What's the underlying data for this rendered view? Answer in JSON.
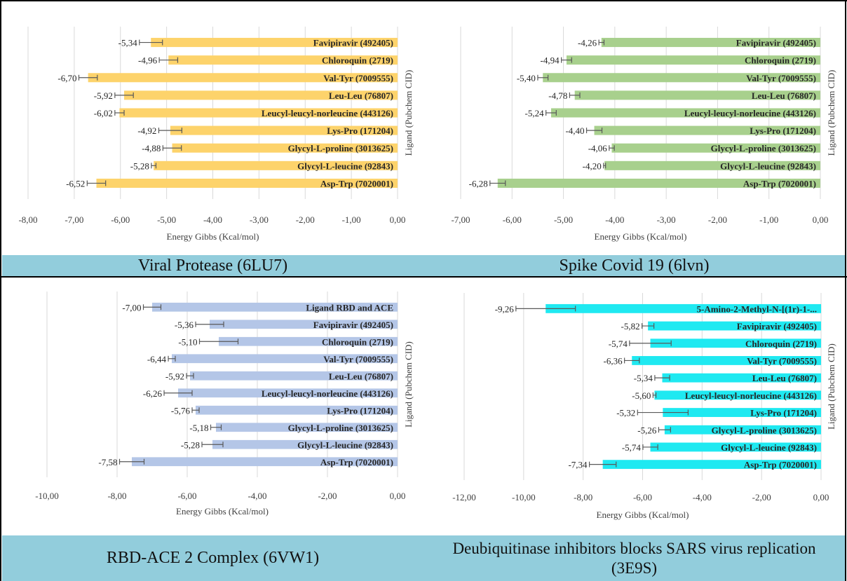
{
  "colors": {
    "panel_a": "#fdd36b",
    "panel_b": "#a8d08d",
    "panel_c": "#b4c6e7",
    "panel_d": "#1fe9f1",
    "caption_band": "#92cddc",
    "grid": "#d9d9d9",
    "error_bar": "#595959"
  },
  "captions": {
    "a": "Viral Protease (6LU7)",
    "b": "Spike Covid 19 (6lvn)",
    "c": "RBD-ACE 2 Complex (6VW1)",
    "d": "Deubiquitinase inhibitors blocks SARS virus replication (3E9S)"
  },
  "chart_data": [
    {
      "type": "bar",
      "orientation": "horizontal",
      "panel": "a",
      "title": "",
      "xlabel": "Energy Gibbs (Kcal/mol)",
      "ylabel": "Ligand (Pubchem CID)",
      "xlim": [
        -8,
        0
      ],
      "x_ticks": [
        "-8,00",
        "-7,00",
        "-6,00",
        "-5,00",
        "-4,00",
        "-3,00",
        "-2,00",
        "-1,00",
        "0,00"
      ],
      "grid": "vertical",
      "categories": [
        "Favipiravir (492405)",
        "Chloroquin (2719)",
        "Val-Tyr (7009555)",
        "Leu-Leu (76807)",
        "Leucyl-leucyl-norleucine (443126)",
        "Lys-Pro (171204)",
        "Glycyl-L-proline (3013625)",
        "Glycyl-L-leucine (92843)",
        "Asp-Trp (7020001)"
      ],
      "values": [
        -5.34,
        -4.96,
        -6.7,
        -5.92,
        -6.02,
        -4.92,
        -4.88,
        -5.28,
        -6.52
      ],
      "value_labels": [
        "-5,34",
        "-4,96",
        "-6,70",
        "-5,92",
        "-6,02",
        "-4,92",
        "-4,88",
        "-5,28",
        "-6,52"
      ],
      "errors": [
        0.25,
        0.2,
        0.2,
        0.2,
        0.1,
        0.25,
        0.2,
        0.05,
        0.2
      ]
    },
    {
      "type": "bar",
      "orientation": "horizontal",
      "panel": "b",
      "title": "",
      "xlabel": "Energy Gibbs (Kcal/mol)",
      "ylabel": "Ligand (Pubchem CID)",
      "xlim": [
        -7,
        0
      ],
      "x_ticks": [
        "-7,00",
        "-6,00",
        "-5,00",
        "-4,00",
        "-3,00",
        "-2,00",
        "-1,00",
        "0,00"
      ],
      "grid": "vertical",
      "categories": [
        "Favipiravir (492405)",
        "Chloroquin (2719)",
        "Val-Tyr (7009555)",
        "Leu-Leu (76807)",
        "Leucyl-leucyl-norleucine (443126)",
        "Lys-Pro (171204)",
        "Glycyl-L-proline (3013625)",
        "Glycyl-L-leucine (92843)",
        "Asp-Trp (7020001)"
      ],
      "values": [
        -4.26,
        -4.94,
        -5.4,
        -4.78,
        -5.24,
        -4.4,
        -4.06,
        -4.2,
        -6.28
      ],
      "value_labels": [
        "-4,26",
        "-4,94",
        "-5,40",
        "-4,78",
        "-5,24",
        "-4,40",
        "-4,06",
        "-4,20",
        "-6,28"
      ],
      "errors": [
        0.05,
        0.1,
        0.1,
        0.1,
        0.1,
        0.15,
        0.05,
        0.02,
        0.15
      ]
    },
    {
      "type": "bar",
      "orientation": "horizontal",
      "panel": "c",
      "title": "",
      "xlabel": "Energy Gibbs (Kcal/mol)",
      "ylabel": "Ligand (Pubchem CID)",
      "xlim": [
        -10,
        0
      ],
      "x_ticks": [
        "-10,00",
        "-8,00",
        "-6,00",
        "-4,00",
        "-2,00",
        "0,00"
      ],
      "grid": "vertical",
      "categories": [
        "Ligand RBD and ACE",
        "Favipiravir (492405)",
        "Chloroquin (2719)",
        "Val-Tyr (7009555)",
        "Leu-Leu (76807)",
        "Leucyl-leucyl-norleucine (443126)",
        "Lys-Pro (171204)",
        "Glycyl-L-proline (3013625)",
        "Glycyl-L-leucine (92843)",
        "Asp-Trp (7020001)"
      ],
      "values": [
        -7.0,
        -5.36,
        -5.1,
        -6.44,
        -5.92,
        -6.26,
        -5.76,
        -5.18,
        -5.28,
        -7.58
      ],
      "value_labels": [
        "-7,00",
        "-5,36",
        "-5,10",
        "-6,44",
        "-5,92",
        "-6,26",
        "-5,76",
        "-5,18",
        "-5,28",
        "-7,58"
      ],
      "errors": [
        0.25,
        0.4,
        0.55,
        0.1,
        0.1,
        0.4,
        0.1,
        0.15,
        0.3,
        0.35
      ]
    },
    {
      "type": "bar",
      "orientation": "horizontal",
      "panel": "d",
      "title": "",
      "xlabel": "Energy Gibbs (Kcal/mol)",
      "ylabel": "Ligand (Pubchem CID)",
      "xlim": [
        -12,
        0
      ],
      "x_ticks": [
        "-12,00",
        "-10,00",
        "-8,00",
        "-6,00",
        "-4,00",
        "-2,00",
        "0,00"
      ],
      "grid": "vertical",
      "categories": [
        "5-Amino-2-Methyl-N-[(1r)-1-...",
        "Favipiravir (492405)",
        "Chloroquin (2719)",
        "Val-Tyr (7009555)",
        "Leu-Leu (76807)",
        "Leucyl-leucyl-norleucine (443126)",
        "Lys-Pro (171204)",
        "Glycyl-L-proline (3013625)",
        "Glycyl-L-leucine (92843)",
        "Asp-Trp (7020001)"
      ],
      "values": [
        -9.26,
        -5.82,
        -5.74,
        -6.36,
        -5.34,
        -5.6,
        -5.32,
        -5.26,
        -5.74,
        -7.34
      ],
      "value_labels": [
        "-9,26",
        "-5,82",
        "-5,74",
        "-6,36",
        "-5,34",
        "-5,60",
        "-5,32",
        "-5,26",
        "-5,74",
        "-7,34"
      ],
      "errors": [
        1.0,
        0.2,
        0.7,
        0.25,
        0.25,
        0.05,
        0.85,
        0.2,
        0.25,
        0.45
      ]
    }
  ]
}
